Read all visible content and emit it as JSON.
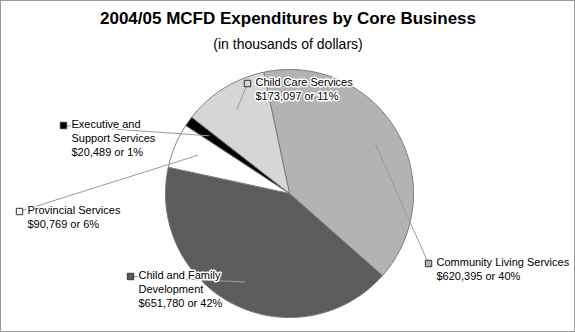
{
  "chart_data": {
    "type": "pie",
    "title": "2004/05 MCFD Expenditures by Core Business",
    "subtitle": "(in thousands of dollars)",
    "categories": [
      "Community Living Services",
      "Child and Family Development",
      "Provincial Services",
      "Executive and Support Services",
      "Child Care Services"
    ],
    "values": [
      620395,
      651780,
      90769,
      20489,
      173097
    ],
    "value_labels": [
      "$620,395 or 40%",
      "$651,780 or 42%",
      "$90,769 or 6%",
      "$20,489 or 1%",
      "$173,097 or 11%"
    ],
    "colors": [
      "#b3b3b3",
      "#5c5c5c",
      "#ffffff",
      "#000000",
      "#d6d6d6"
    ],
    "data_labels": true
  }
}
